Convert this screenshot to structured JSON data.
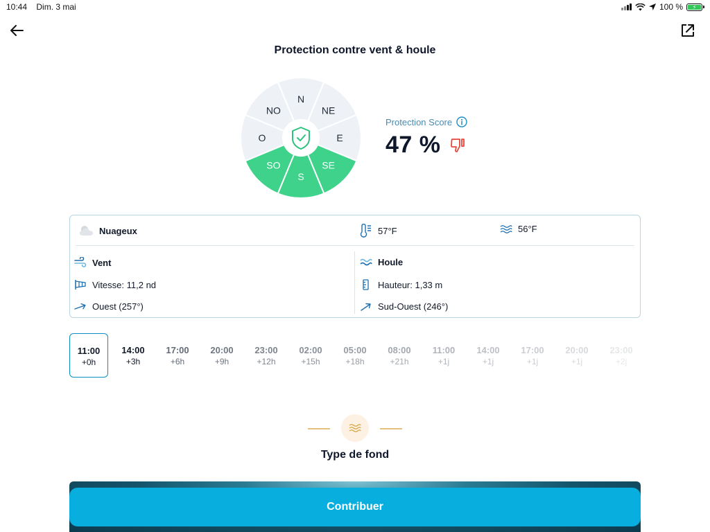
{
  "status_bar": {
    "time": "10:44",
    "date": "Dim. 3 mai",
    "battery": "100 %"
  },
  "protection": {
    "title": "Protection contre vent & houle",
    "score_label": "Protection Score",
    "score_value": "47 %",
    "score_percent": 47,
    "directions": [
      "N",
      "NE",
      "E",
      "SE",
      "S",
      "SO",
      "O",
      "NO"
    ],
    "protected_directions": [
      "SE",
      "S",
      "SO"
    ],
    "colors": {
      "protected": "#3ed28b",
      "unprotected": "#eef2f6",
      "shield": "#2ec27e",
      "thumb": "#e8463a"
    }
  },
  "weather": {
    "condition": "Nuageux",
    "air_temp": "57°F",
    "water_temp": "56°F",
    "wind": {
      "title": "Vent",
      "speed": "Vitesse: 11,2 nd",
      "direction": "Ouest (257°)"
    },
    "swell": {
      "title": "Houle",
      "height": "Hauteur: 1,33 m",
      "direction": "Sud-Ouest (246°)"
    }
  },
  "timeline": [
    {
      "time": "11:00",
      "offset": "+0h"
    },
    {
      "time": "14:00",
      "offset": "+3h"
    },
    {
      "time": "17:00",
      "offset": "+6h"
    },
    {
      "time": "20:00",
      "offset": "+9h"
    },
    {
      "time": "23:00",
      "offset": "+12h"
    },
    {
      "time": "02:00",
      "offset": "+15h"
    },
    {
      "time": "05:00",
      "offset": "+18h"
    },
    {
      "time": "08:00",
      "offset": "+21h"
    },
    {
      "time": "11:00",
      "offset": "+1j"
    },
    {
      "time": "14:00",
      "offset": "+1j"
    },
    {
      "time": "17:00",
      "offset": "+1j"
    },
    {
      "time": "20:00",
      "offset": "+1j"
    },
    {
      "time": "23:00",
      "offset": "+2j"
    }
  ],
  "seabed": {
    "title": "Type de fond",
    "button_label": "Contribuer"
  }
}
